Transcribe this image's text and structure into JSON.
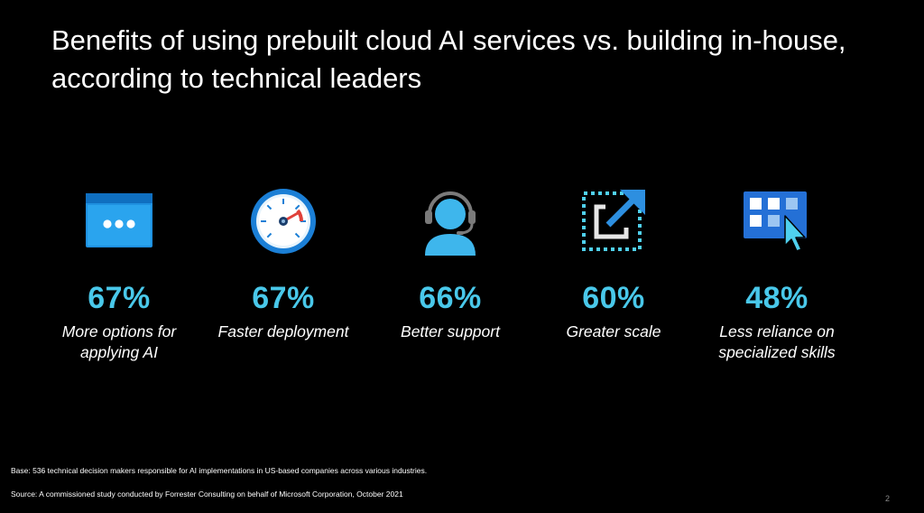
{
  "slide": {
    "title": "Benefits of using prebuilt cloud AI services vs. building in-house, according to technical leaders",
    "page_number": "2"
  },
  "accent_color": "#49c8ea",
  "stats": [
    {
      "icon": "browser-window-icon",
      "value": "67%",
      "label": "More options for applying AI"
    },
    {
      "icon": "speedometer-icon",
      "value": "67%",
      "label": "Faster deployment"
    },
    {
      "icon": "support-agent-headset-icon",
      "value": "66%",
      "label": "Better support"
    },
    {
      "icon": "expand-arrow-icon",
      "value": "60%",
      "label": "Greater scale"
    },
    {
      "icon": "app-grid-cursor-icon",
      "value": "48%",
      "label": "Less reliance on specialized skills"
    }
  ],
  "footnotes": {
    "base": "Base: 536 technical decision makers responsible for AI implementations in US-based companies across various industries.",
    "source": "Source: A commissioned study conducted by Forrester Consulting on behalf of Microsoft Corporation, October 2021"
  }
}
